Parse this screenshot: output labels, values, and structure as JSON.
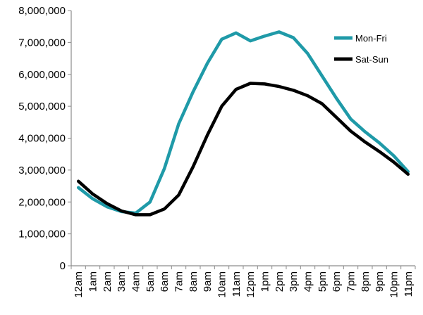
{
  "chart_data": {
    "type": "line",
    "title": "",
    "xlabel": "",
    "ylabel": "",
    "categories": [
      "12am",
      "1am",
      "2am",
      "3am",
      "4am",
      "5am",
      "6am",
      "7am",
      "8am",
      "9am",
      "10am",
      "11am",
      "12pm",
      "1pm",
      "2pm",
      "3pm",
      "4pm",
      "5pm",
      "6pm",
      "7pm",
      "8pm",
      "9pm",
      "10pm",
      "11pm"
    ],
    "y_ticks": [
      "0",
      "1,000,000",
      "2,000,000",
      "3,000,000",
      "4,000,000",
      "5,000,000",
      "6,000,000",
      "7,000,000",
      "8,000,000"
    ],
    "ylim": [
      0,
      8000000
    ],
    "grid": false,
    "legend_position": "right",
    "series": [
      {
        "name": "Mon-Fri",
        "color": "#1f9aa8",
        "values": [
          2450000,
          2100000,
          1850000,
          1700000,
          1650000,
          2000000,
          3050000,
          4450000,
          5450000,
          6350000,
          7100000,
          7300000,
          7050000,
          7200000,
          7330000,
          7150000,
          6650000,
          5950000,
          5250000,
          4600000,
          4200000,
          3850000,
          3450000,
          2950000
        ]
      },
      {
        "name": "Sat-Sun",
        "color": "#000000",
        "values": [
          2650000,
          2250000,
          1950000,
          1720000,
          1600000,
          1600000,
          1780000,
          2220000,
          3100000,
          4100000,
          5000000,
          5530000,
          5720000,
          5700000,
          5620000,
          5500000,
          5330000,
          5080000,
          4650000,
          4220000,
          3880000,
          3580000,
          3250000,
          2870000
        ]
      }
    ]
  }
}
